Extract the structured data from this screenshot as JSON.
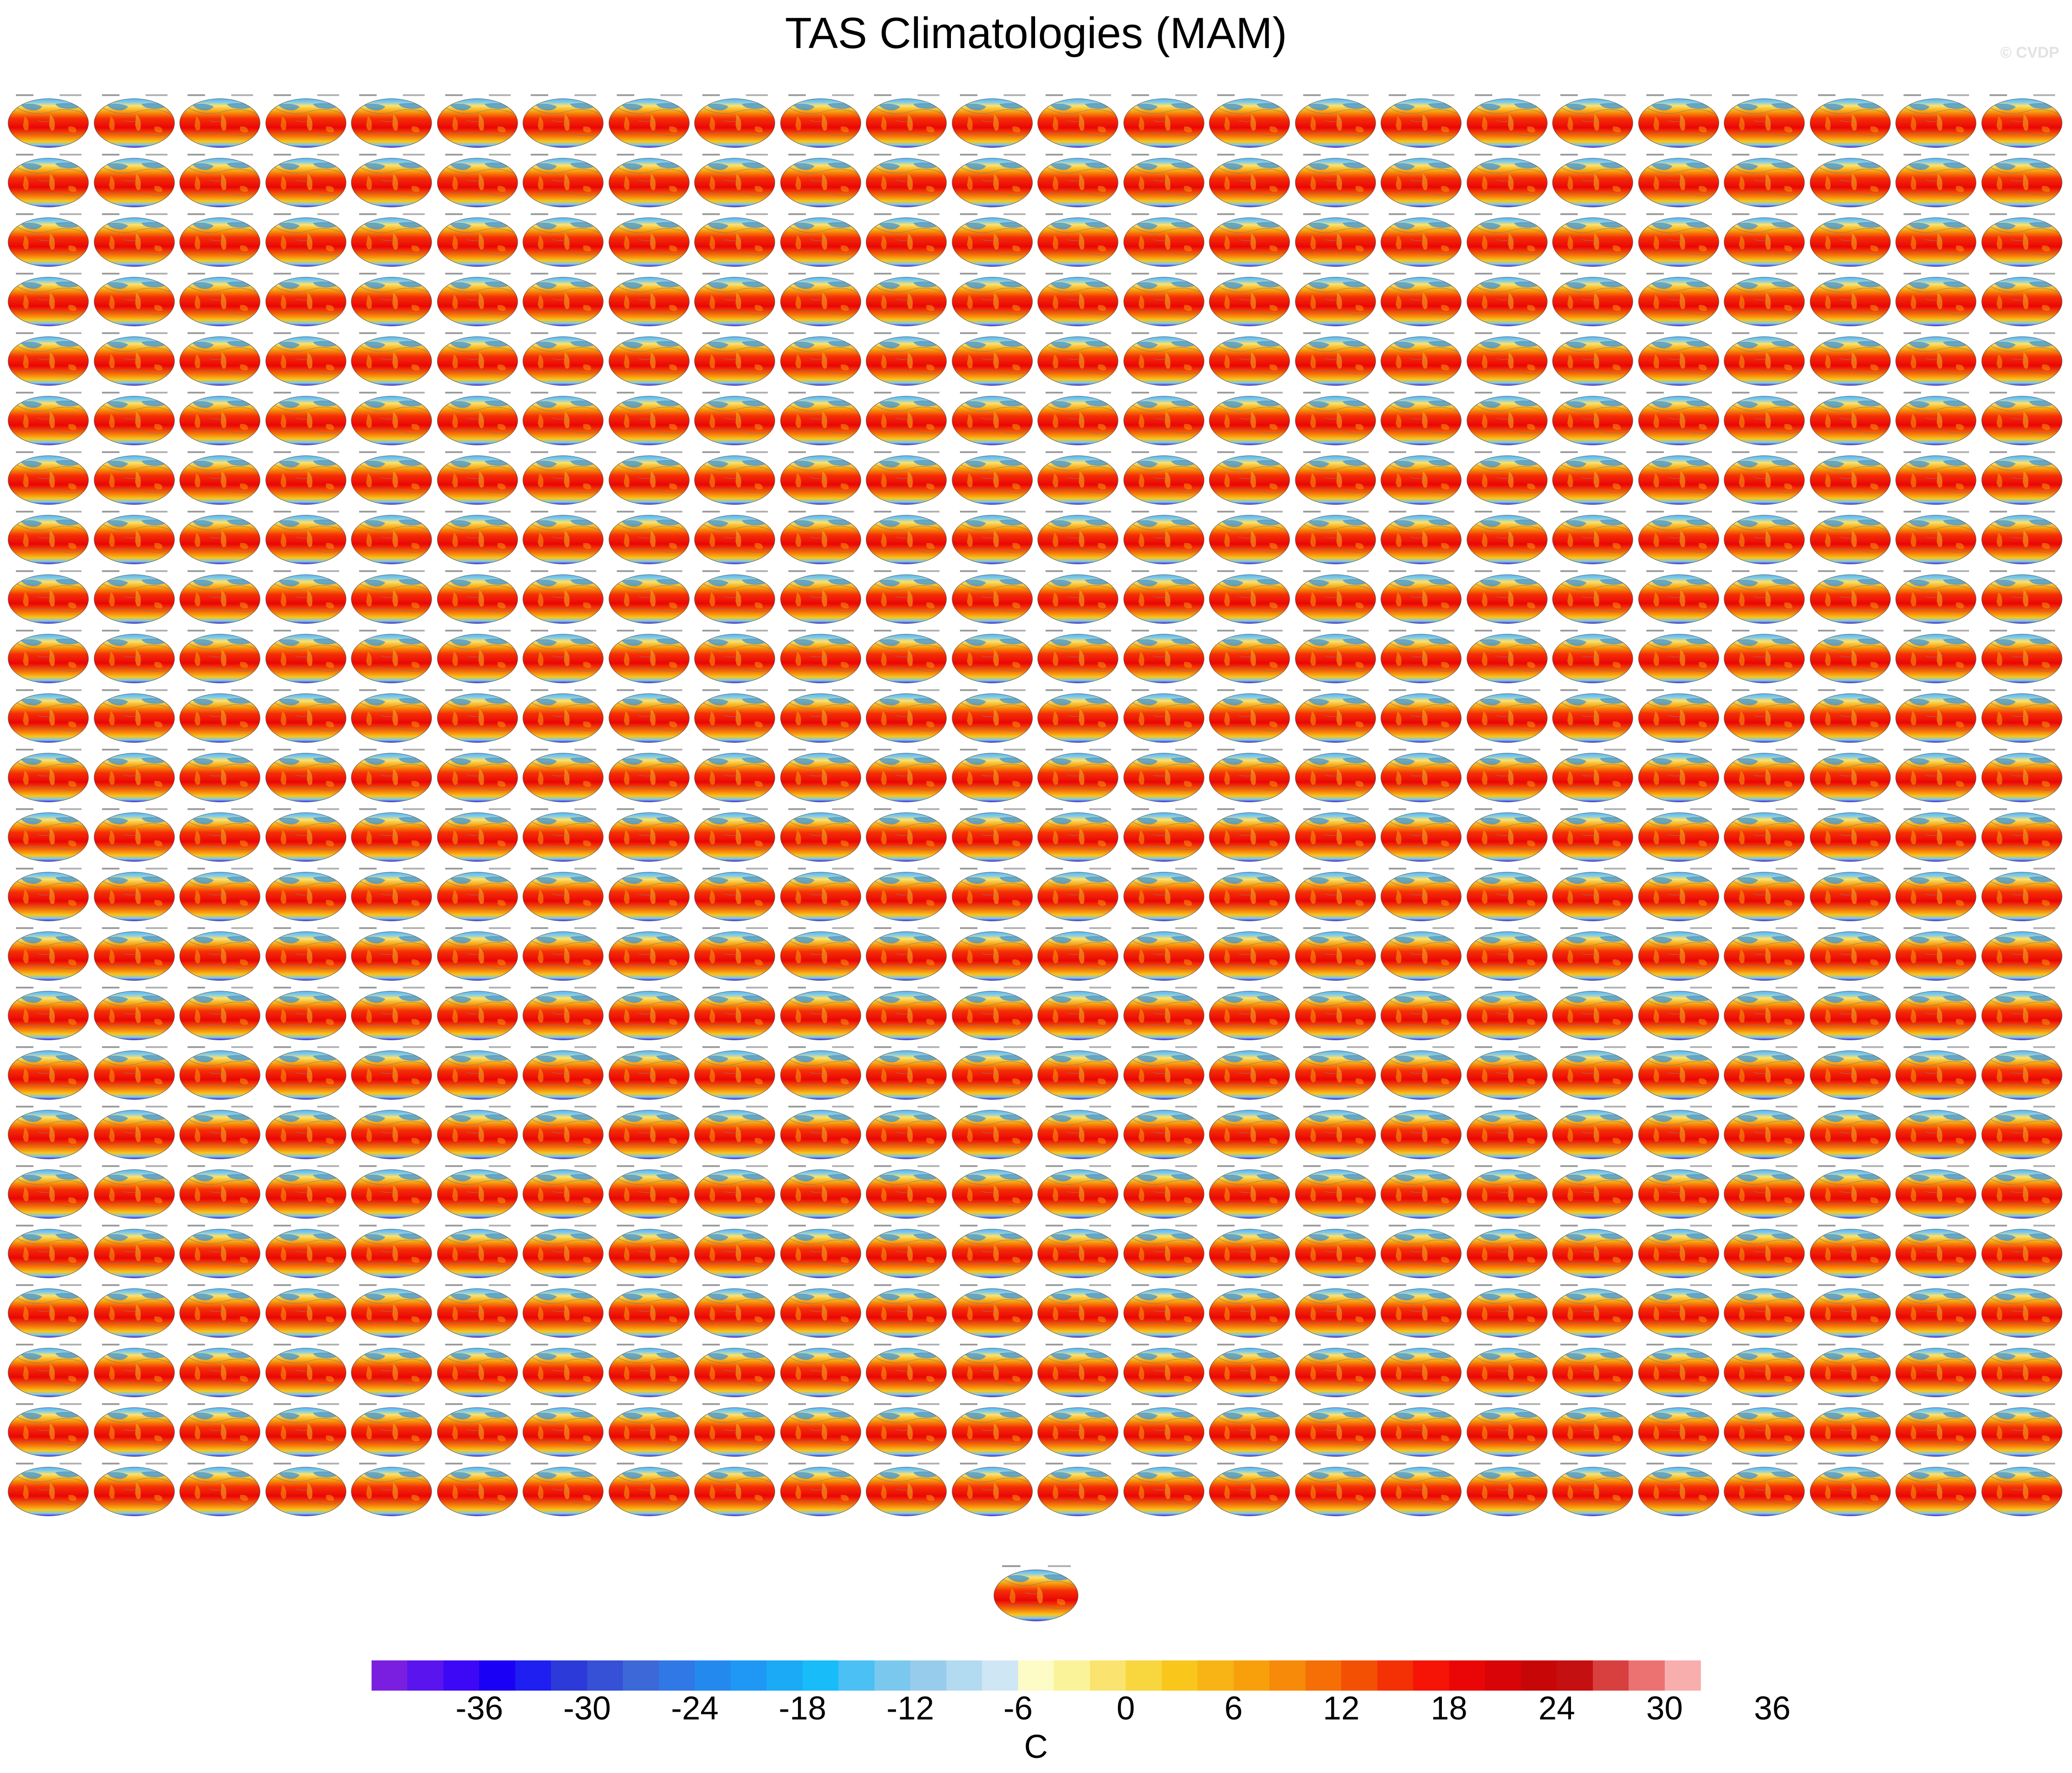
{
  "title": "TAS Climatologies (MAM)",
  "watermark": "© CVDP",
  "panel_grid": {
    "rows": 24,
    "columns": 24,
    "extra_centered_panels": 1,
    "projection": "robinson",
    "palette_note": "MAM surface air temperature maps, warm tropics, cold polar regions"
  },
  "colorbar": {
    "units": "C",
    "labels": [
      "-36",
      "-30",
      "-24",
      "-18",
      "-12",
      "-6",
      "0",
      "6",
      "12",
      "18",
      "24",
      "30",
      "36"
    ],
    "colors": [
      "#7a1fe0",
      "#5a14ee",
      "#3d08f5",
      "#1a00f4",
      "#1e1ff0",
      "#2c3ad9",
      "#3650d6",
      "#3c68d8",
      "#2f78e6",
      "#2489ef",
      "#1e98f4",
      "#1aaaf6",
      "#18bcf8",
      "#4ac0f4",
      "#7ac8ee",
      "#98ccec",
      "#b2daf0",
      "#cfe6f4",
      "#fdfbc6",
      "#fbf39a",
      "#fae36e",
      "#f8d63e",
      "#f9c61c",
      "#f7b414",
      "#f7a00c",
      "#f78a08",
      "#f56e06",
      "#f45004",
      "#f43005",
      "#f51406",
      "#ea0506",
      "#d90407",
      "#c70608",
      "#c41010",
      "#d84040",
      "#ec7272",
      "#f9aeae"
    ]
  }
}
